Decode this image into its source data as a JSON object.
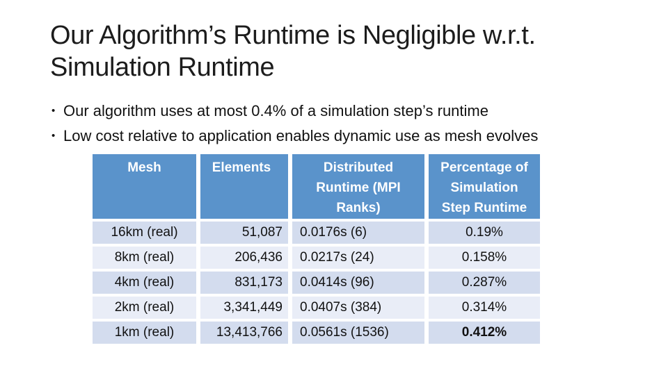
{
  "slide": {
    "title": {
      "line1": "Our Algorithm’s Runtime is Negligible w.r.t.",
      "line2": "Simulation Runtime"
    },
    "bullet_char": "•",
    "bullets": [
      "Our algorithm uses at most 0.4% of a simulation step’s runtime",
      "Low cost relative to application enables dynamic use as mesh evolves"
    ],
    "table": {
      "headers": [
        "Mesh",
        "Elements",
        "Distributed Runtime (MPI Ranks)",
        "Percentage of Simulation Step Runtime"
      ],
      "rows": [
        {
          "mesh": "16km (real)",
          "elements": "51,087",
          "runtime": "0.0176s (6)",
          "percentage": "0.19%"
        },
        {
          "mesh": "8km (real)",
          "elements": "206,436",
          "runtime": "0.0217s (24)",
          "percentage": "0.158%"
        },
        {
          "mesh": "4km (real)",
          "elements": "831,173",
          "runtime": "0.0414s (96)",
          "percentage": "0.287%"
        },
        {
          "mesh": "2km (real)",
          "elements": "3,341,449",
          "runtime": "0.0407s (384)",
          "percentage": "0.314%"
        },
        {
          "mesh": "1km (real)",
          "elements": "13,413,766",
          "runtime": "0.0561s (1536)",
          "percentage": "0.412%"
        }
      ]
    },
    "colors": {
      "header_bg": "#5A93CB",
      "header_text": "#FFFFFF",
      "row_odd": "#D3DCEE",
      "row_even": "#E9EDF7"
    }
  }
}
